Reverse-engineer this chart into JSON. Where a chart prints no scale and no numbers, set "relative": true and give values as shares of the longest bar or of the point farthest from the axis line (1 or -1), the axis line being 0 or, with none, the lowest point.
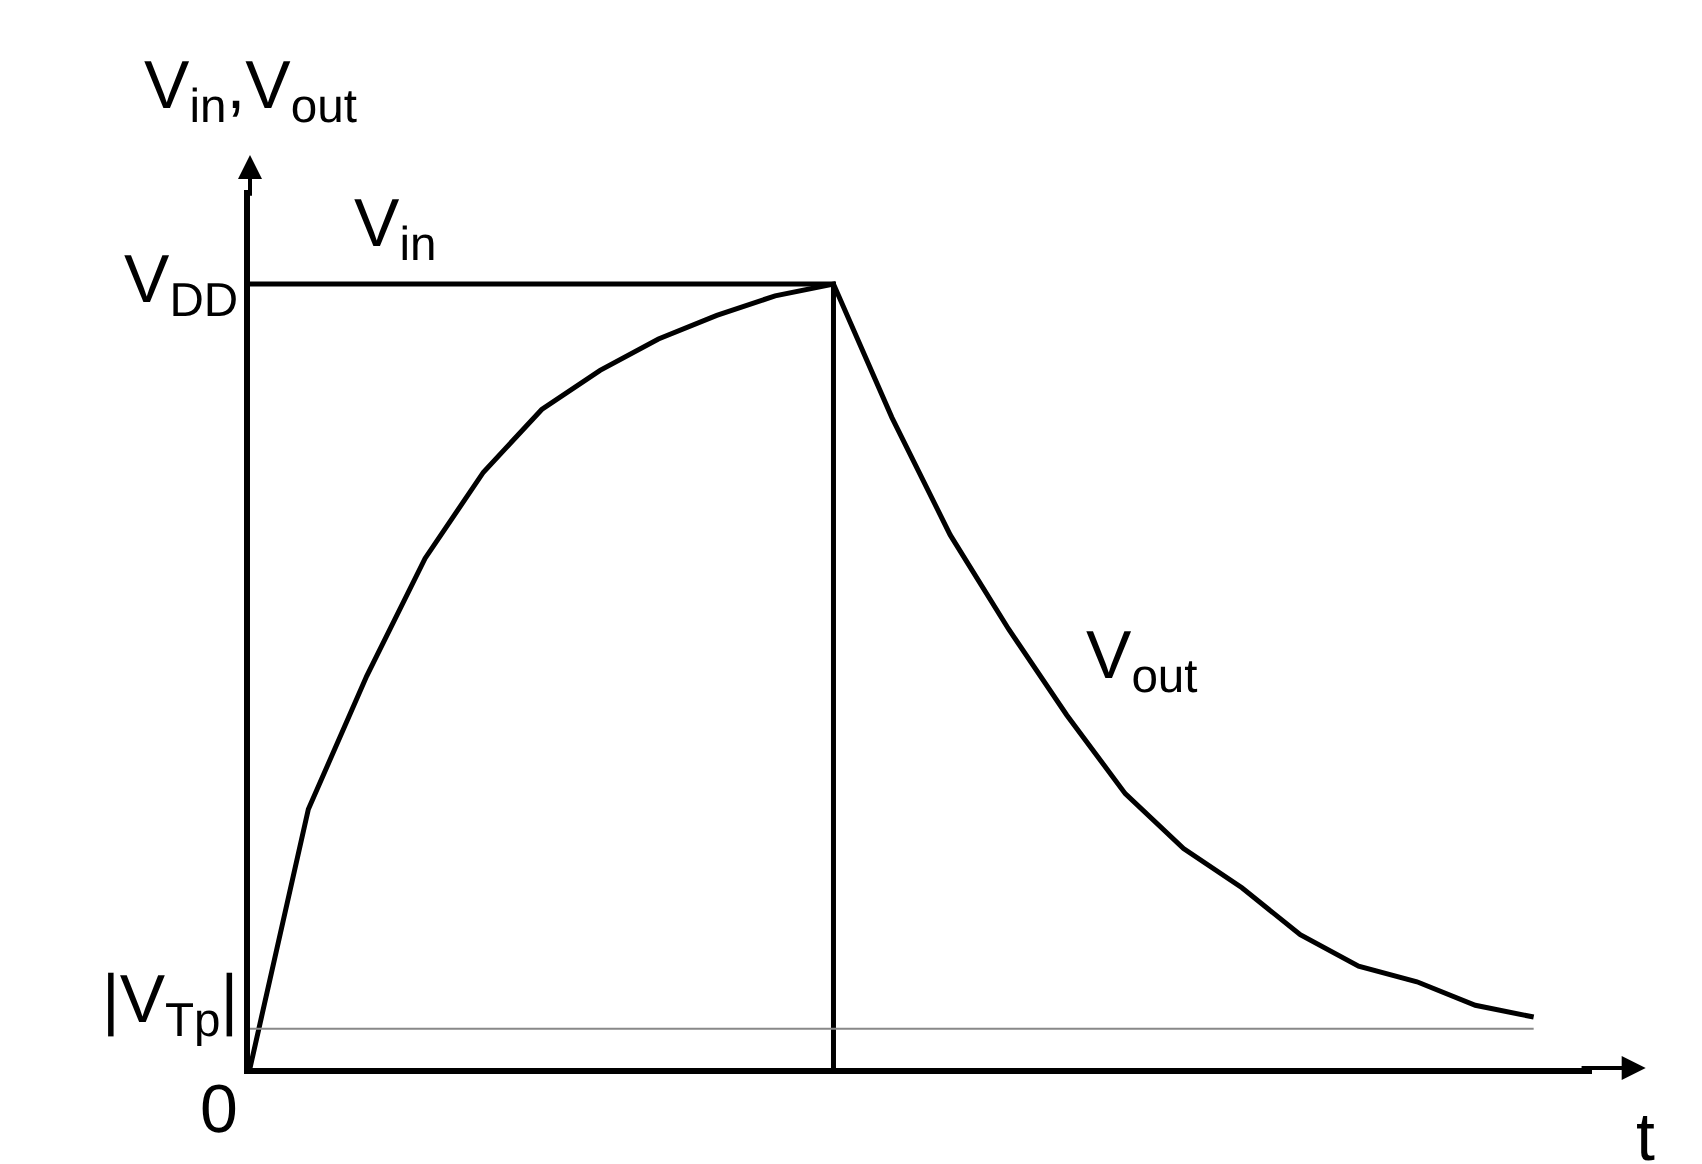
{
  "chart_data": {
    "type": "line",
    "relative": true,
    "xlabel": "t",
    "ylabel": "V$_{in}$,V$_{out}$",
    "categories": [
      null,
      null,
      null,
      null,
      null,
      null,
      null,
      null,
      null,
      null,
      null,
      null,
      null,
      null,
      null,
      null,
      null,
      null,
      null,
      null,
      null,
      null,
      null
    ],
    "legend": false,
    "marker": "none",
    "line_style": "solid",
    "series": [
      {
        "name": "V$_{in}$",
        "type": "step",
        "color": "#000000",
        "values": [
          1,
          1,
          1,
          1,
          1,
          1,
          1,
          1,
          1,
          1,
          0,
          null,
          null,
          null,
          null,
          null,
          null,
          null,
          null,
          null,
          null,
          null,
          null
        ]
      },
      {
        "name": "V$_{out}$",
        "color": "#000000",
        "values": [
          0,
          0.33,
          0.5,
          0.65,
          0.76,
          0.84,
          0.89,
          0.93,
          0.96,
          0.985,
          1.0,
          0.83,
          0.68,
          0.56,
          0.45,
          0.35,
          0.28,
          0.23,
          0.17,
          0.13,
          0.11,
          0.08,
          0.065
        ]
      }
    ],
    "ref_lines": [
      {
        "axis": "y",
        "value": 0.05,
        "label": "|V$_{Tp}$|",
        "color": "#888888"
      }
    ],
    "annotations": [
      "V$_{DD}$",
      "0"
    ]
  }
}
